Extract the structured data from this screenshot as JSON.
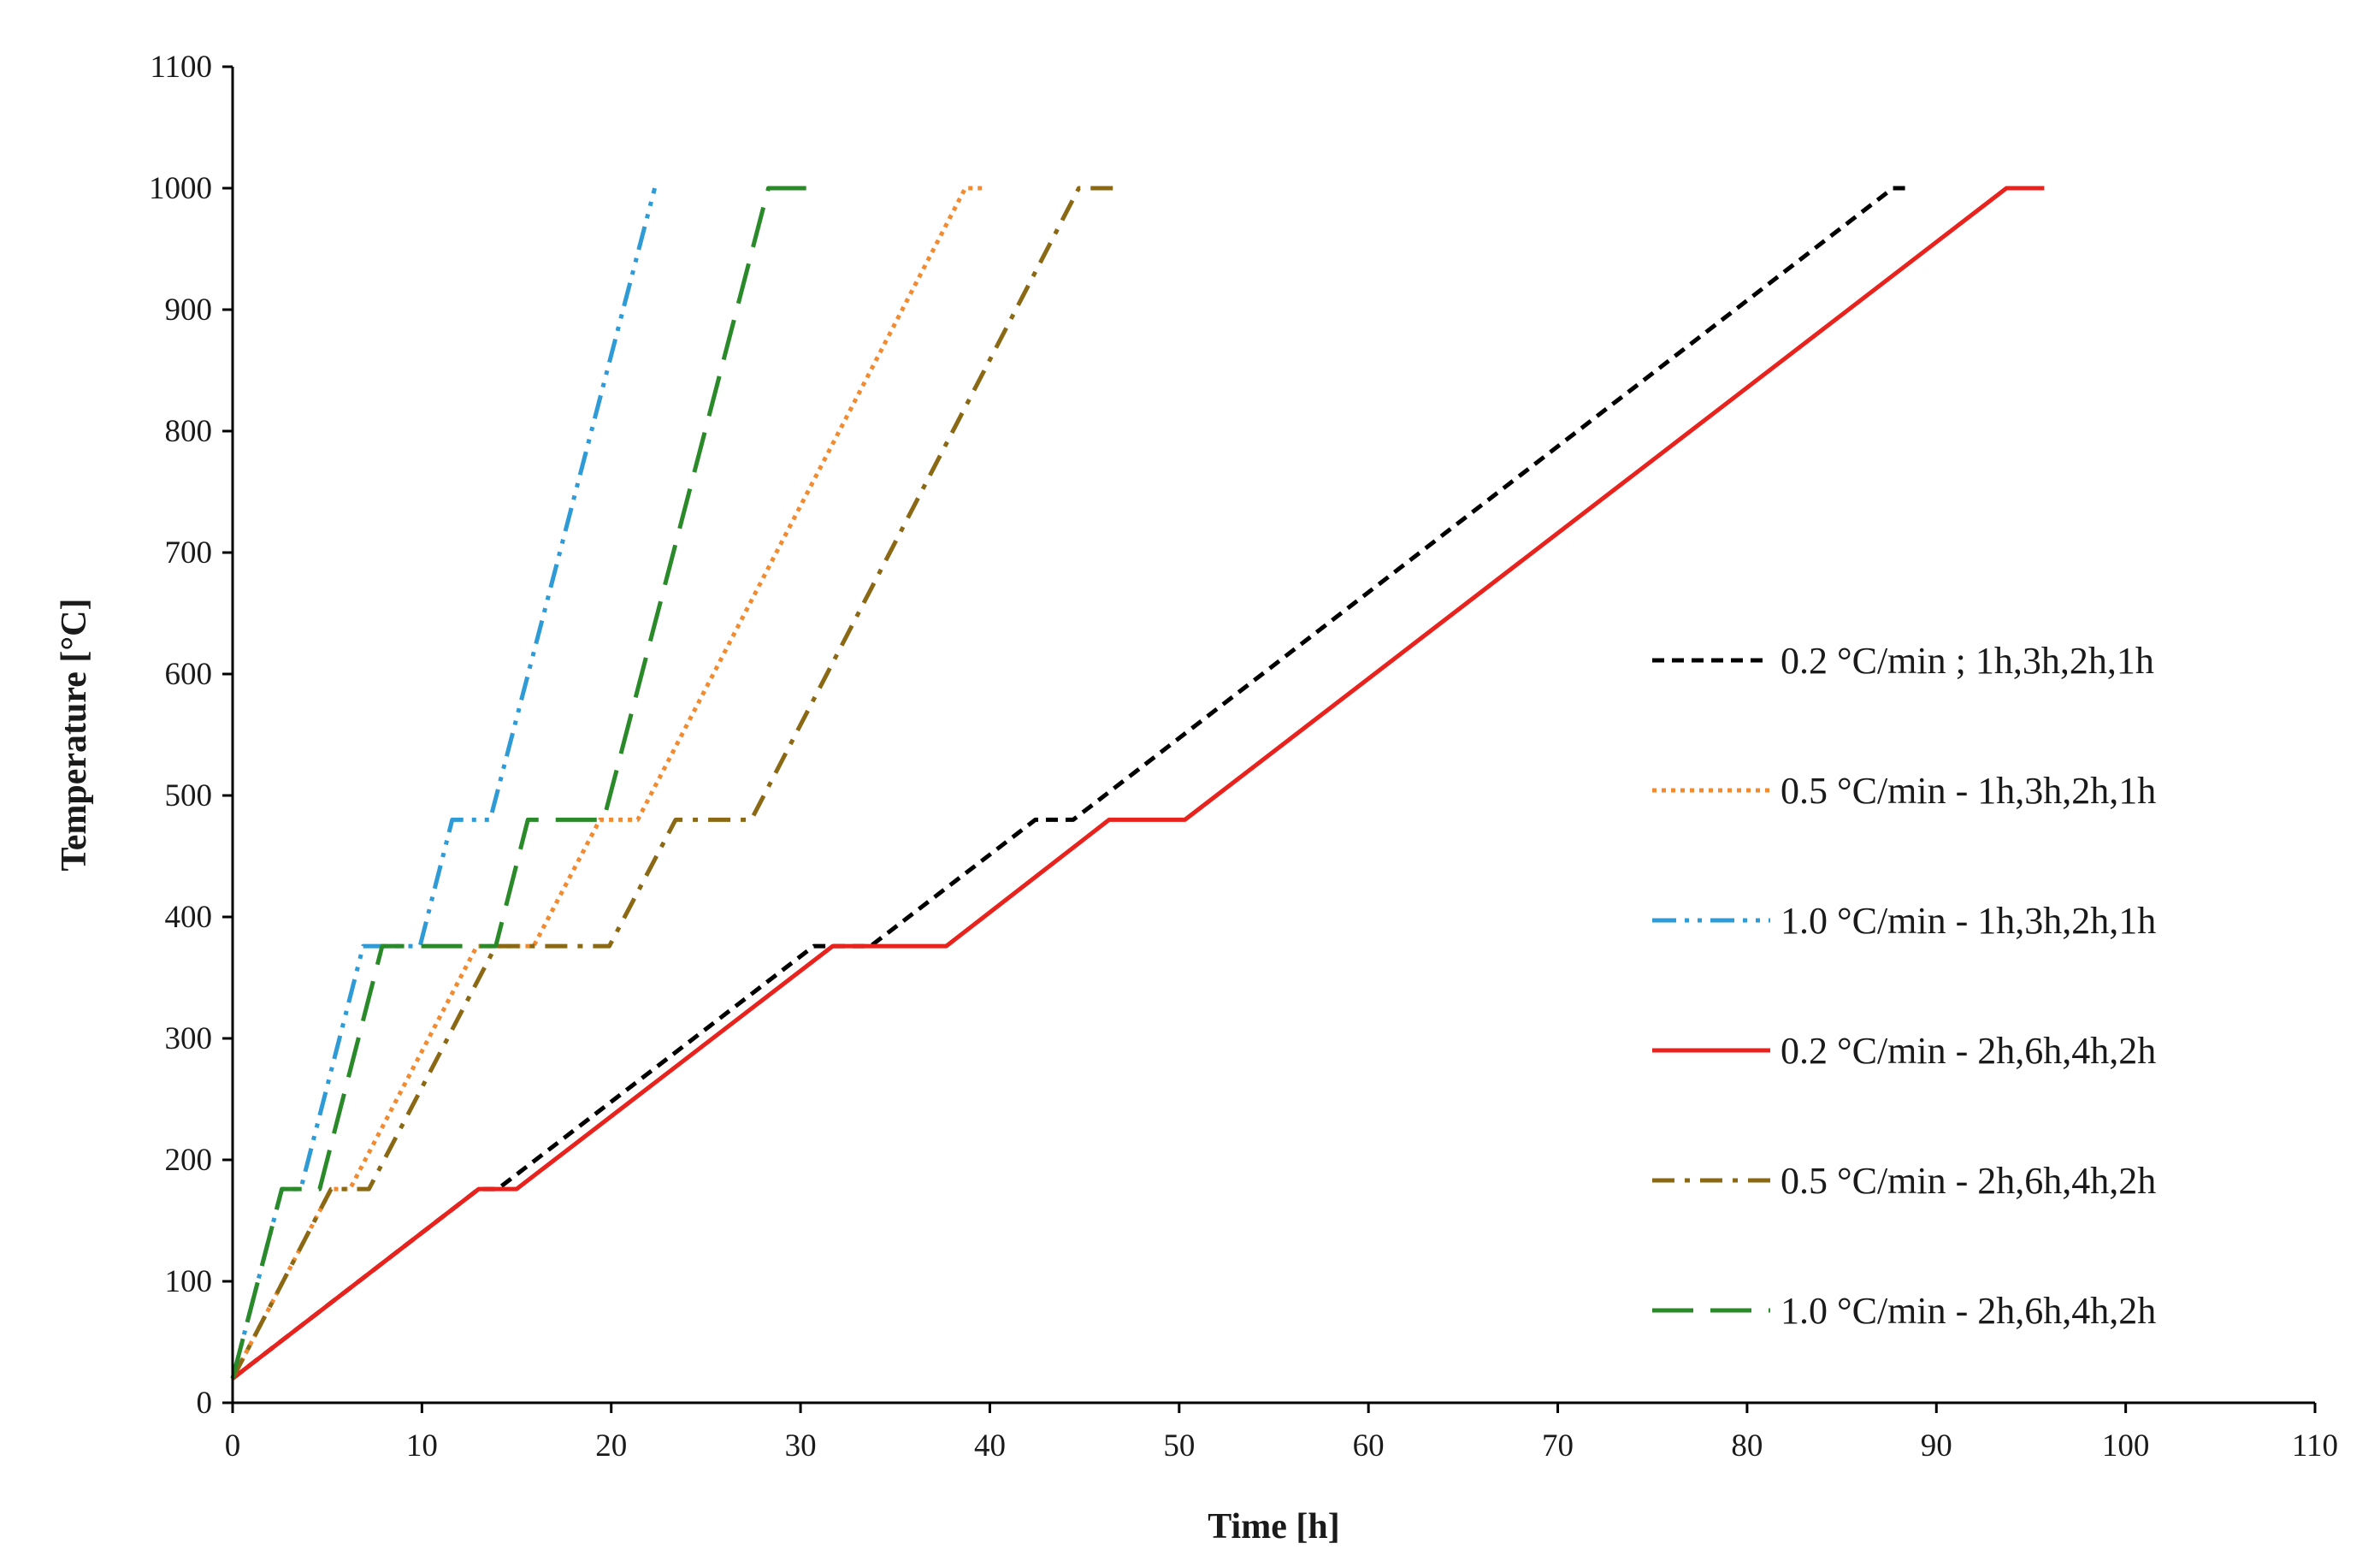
{
  "chart_data": {
    "type": "line",
    "title": "",
    "xlabel": "Time [h]",
    "ylabel": "Temperature [°C]",
    "xlim": [
      0,
      110
    ],
    "ylim": [
      0,
      1100
    ],
    "xticks": [
      0,
      10,
      20,
      30,
      40,
      50,
      60,
      70,
      80,
      90,
      100,
      110
    ],
    "yticks": [
      0,
      100,
      200,
      300,
      400,
      500,
      600,
      700,
      800,
      900,
      1000,
      1100
    ],
    "grid": false,
    "legend_position": "right",
    "series": [
      {
        "name": "0.2 °C/min ; 1h,3h,2h,1h",
        "color": "#000000",
        "dash": "short-dash",
        "x": [
          0,
          13.0,
          14.0,
          30.7,
          33.7,
          42.4,
          44.4,
          87.7,
          88.7
        ],
        "y": [
          20,
          176,
          176,
          376,
          376,
          480,
          480,
          1000,
          1000
        ]
      },
      {
        "name": "0.5 °C/min - 1h,3h,2h,1h",
        "color": "#f28a30",
        "dash": "dotted",
        "x": [
          0,
          5.2,
          6.2,
          12.9,
          15.9,
          19.4,
          21.4,
          38.7,
          39.7
        ],
        "y": [
          20,
          176,
          176,
          376,
          376,
          480,
          480,
          1000,
          1000
        ]
      },
      {
        "name": "1.0 °C/min - 1h,3h,2h,1h",
        "color": "#2e9bd6",
        "dash": "dash-dot-dot",
        "x": [
          0,
          2.6,
          3.6,
          6.9,
          9.9,
          11.6,
          13.6,
          22.3
        ],
        "y": [
          20,
          176,
          176,
          376,
          376,
          480,
          480,
          1000
        ]
      },
      {
        "name": "0.2 °C/min - 2h,6h,4h,2h",
        "color": "#e8231e",
        "dash": "solid",
        "x": [
          0,
          13.0,
          15.0,
          31.7,
          37.7,
          46.3,
          50.3,
          93.7,
          95.7
        ],
        "y": [
          20,
          176,
          176,
          376,
          376,
          480,
          480,
          1000,
          1000
        ]
      },
      {
        "name": "0.5 °C/min - 2h,6h,4h,2h",
        "color": "#8b6914",
        "dash": "dash-dot",
        "x": [
          0,
          5.2,
          7.2,
          13.9,
          19.9,
          23.4,
          27.4,
          44.7,
          46.7
        ],
        "y": [
          20,
          176,
          176,
          376,
          376,
          480,
          480,
          1000,
          1000
        ]
      },
      {
        "name": "1.0 °C/min - 2h,6h,4h,2h",
        "color": "#2a8a2a",
        "dash": "long-dash",
        "x": [
          0,
          2.6,
          4.6,
          7.9,
          13.9,
          15.6,
          19.6,
          28.3,
          30.3
        ],
        "y": [
          20,
          176,
          176,
          376,
          376,
          480,
          480,
          1000,
          1000
        ]
      }
    ]
  }
}
